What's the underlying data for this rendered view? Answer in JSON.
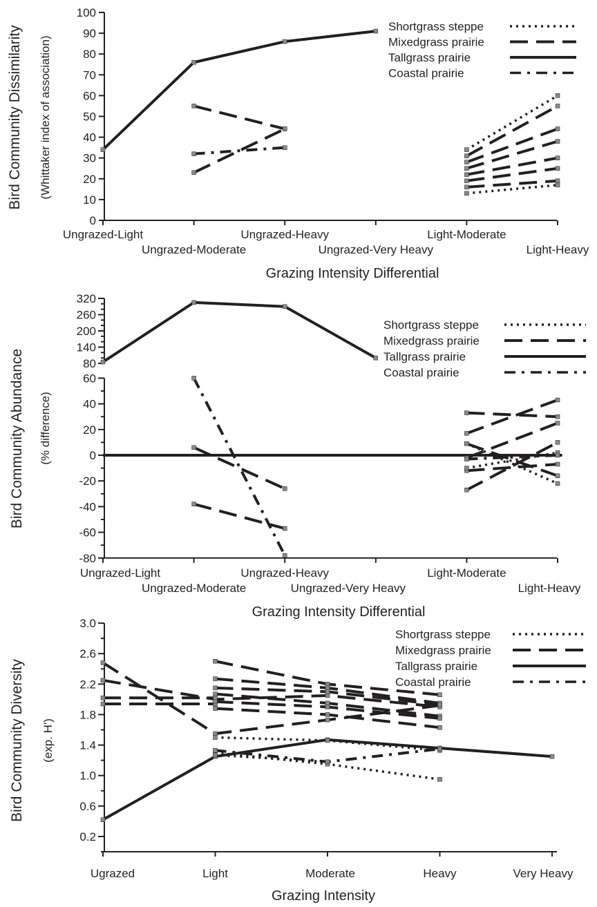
{
  "colors": {
    "ink": "#231f20",
    "background": "#ffffff",
    "markers": "#8a8a8a"
  },
  "legend_items": [
    "Shortgrass steppe",
    "Mixedgrass prairie",
    "Tallgrass prairie",
    "Coastal prairie"
  ],
  "chart_data": [
    {
      "type": "line",
      "ylabel": "Bird Community Dissimilarity",
      "ylabel_sub": "(Whittaker index of association)",
      "xlabel": "Grazing Intensity Differential",
      "categories": [
        "Ungrazed-Light",
        "Ungrazed-Moderate",
        "Ungrazed-Heavy",
        "Ungrazed-Very Heavy",
        "Light-Moderate",
        "Light-Heavy"
      ],
      "yticks": [
        0,
        10,
        20,
        30,
        40,
        50,
        60,
        70,
        80,
        90,
        100
      ],
      "ylim": [
        0,
        100
      ],
      "legend": [
        "Shortgrass steppe",
        "Mixedgrass prairie",
        "Tallgrass prairie",
        "Coastal prairie"
      ],
      "legend_position": "top-right",
      "grid": false,
      "series": [
        {
          "style": "solid",
          "points": [
            [
              0,
              34
            ],
            [
              1,
              76
            ],
            [
              2,
              86
            ],
            [
              3,
              91
            ]
          ]
        },
        {
          "style": "dashed",
          "points": [
            [
              1,
              55
            ],
            [
              2,
              44
            ]
          ]
        },
        {
          "style": "dashed",
          "points": [
            [
              1,
              23
            ],
            [
              2,
              44
            ]
          ]
        },
        {
          "style": "dashdot",
          "points": [
            [
              1,
              32
            ],
            [
              2,
              35
            ]
          ]
        },
        {
          "style": "dotted",
          "points": [
            [
              4,
              34
            ],
            [
              5,
              60
            ]
          ]
        },
        {
          "style": "dotted",
          "points": [
            [
              4,
              13
            ],
            [
              5,
              17
            ]
          ]
        },
        {
          "style": "dashed",
          "points": [
            [
              4,
              31
            ],
            [
              5,
              55
            ]
          ]
        },
        {
          "style": "dashed",
          "points": [
            [
              4,
              28
            ],
            [
              5,
              44
            ]
          ]
        },
        {
          "style": "dashed",
          "points": [
            [
              4,
              25
            ],
            [
              5,
              38
            ]
          ]
        },
        {
          "style": "dashed",
          "points": [
            [
              4,
              22
            ],
            [
              5,
              30
            ]
          ]
        },
        {
          "style": "dashed",
          "points": [
            [
              4,
              19
            ],
            [
              5,
              25
            ]
          ]
        },
        {
          "style": "dashed",
          "points": [
            [
              4,
              16
            ],
            [
              5,
              19
            ]
          ]
        }
      ]
    },
    {
      "type": "line",
      "ylabel": "Bird Community Abundance",
      "ylabel_sub": "(% difference)",
      "xlabel": "Grazing Intensity Differential",
      "categories": [
        "Ungrazed-Light",
        "Ungrazed-Moderate",
        "Ungrazed-Heavy",
        "Ungrazed-Very Heavy",
        "Light-Moderate",
        "Light-Heavy"
      ],
      "yticks_upper": [
        80,
        140,
        200,
        260,
        320
      ],
      "yticks_lower": [
        -80,
        -60,
        -40,
        -20,
        0,
        20,
        40,
        60
      ],
      "ylim_upper": [
        80,
        320
      ],
      "ylim_lower": [
        -80,
        60
      ],
      "legend": [
        "Shortgrass steppe",
        "Mixedgrass prairie",
        "Tallgrass prairie",
        "Coastal prairie"
      ],
      "legend_position": "top-right",
      "grid": false,
      "series_upper": [
        {
          "style": "solid",
          "points": [
            [
              0,
              85
            ],
            [
              1,
              305
            ],
            [
              2,
              290
            ],
            [
              3,
              100
            ]
          ]
        }
      ],
      "series": [
        {
          "style": "solid",
          "points": [
            [
              0,
              0
            ],
            [
              5.05,
              0
            ]
          ]
        },
        {
          "style": "dashdot",
          "points": [
            [
              1,
              60
            ],
            [
              2,
              -78
            ]
          ]
        },
        {
          "style": "dashed",
          "points": [
            [
              1,
              6
            ],
            [
              2,
              -26
            ]
          ]
        },
        {
          "style": "dashed",
          "points": [
            [
              1,
              -38
            ],
            [
              2,
              -57
            ]
          ]
        },
        {
          "style": "dashed",
          "points": [
            [
              4,
              33
            ],
            [
              5,
              30
            ]
          ]
        },
        {
          "style": "dashed",
          "points": [
            [
              4,
              17
            ],
            [
              5,
              43
            ]
          ]
        },
        {
          "style": "dashed",
          "points": [
            [
              4,
              9
            ],
            [
              5,
              -16
            ]
          ]
        },
        {
          "style": "dashed",
          "points": [
            [
              4,
              -2
            ],
            [
              5,
              25
            ]
          ]
        },
        {
          "style": "dashed",
          "points": [
            [
              4,
              -27
            ],
            [
              5,
              10
            ]
          ]
        },
        {
          "style": "dashed",
          "points": [
            [
              4,
              -12
            ],
            [
              5,
              -7
            ]
          ]
        },
        {
          "style": "dotted",
          "points": [
            [
              4,
              9
            ],
            [
              5,
              -22
            ]
          ]
        },
        {
          "style": "dotted",
          "points": [
            [
              4,
              -10
            ],
            [
              5,
              2
            ]
          ]
        },
        {
          "style": "dashdot",
          "points": [
            [
              4,
              -3
            ],
            [
              5,
              0
            ]
          ]
        }
      ]
    },
    {
      "type": "line",
      "ylabel": "Bird Community Diversity",
      "ylabel_sub": "(exp. H')",
      "xlabel": "Grazing Intensity",
      "categories": [
        "Ugrazed",
        "Light",
        "Moderate",
        "Heavy",
        "Very Heavy"
      ],
      "yticks": [
        0.2,
        0.6,
        1.0,
        1.4,
        1.8,
        2.2,
        2.6,
        3.0
      ],
      "ytick_labels": [
        "0.2",
        "0.6",
        "1.0",
        "1.4",
        "1.8",
        "2.2",
        "2.6",
        "3.0"
      ],
      "ylim": [
        0.0,
        3.0
      ],
      "legend": [
        "Shortgrass steppe",
        "Mixedgrass prairie",
        "Tallgrass prairie",
        "Coastal prairie"
      ],
      "legend_position": "top-right",
      "grid": false,
      "series": [
        {
          "style": "solid",
          "points": [
            [
              0,
              0.42
            ],
            [
              1,
              1.25
            ],
            [
              2,
              1.47
            ],
            [
              3,
              1.36
            ],
            [
              4,
              1.25
            ]
          ]
        },
        {
          "style": "dashed",
          "points": [
            [
              0,
              2.48
            ],
            [
              1,
              1.55
            ],
            [
              2,
              1.73
            ],
            [
              3,
              1.92
            ]
          ]
        },
        {
          "style": "dashed",
          "points": [
            [
              0,
              2.25
            ],
            [
              1,
              2.0
            ],
            [
              2,
              2.05
            ],
            [
              3,
              1.9
            ]
          ]
        },
        {
          "style": "dashed",
          "points": [
            [
              0,
              2.02
            ],
            [
              1,
              2.02
            ]
          ]
        },
        {
          "style": "dashed",
          "points": [
            [
              0,
              1.94
            ],
            [
              1,
              1.94
            ]
          ]
        },
        {
          "style": "dashed",
          "points": [
            [
              1,
              2.5
            ],
            [
              2,
              2.2
            ],
            [
              3,
              2.06
            ]
          ]
        },
        {
          "style": "dashed",
          "points": [
            [
              1,
              2.27
            ],
            [
              2,
              2.15
            ],
            [
              3,
              1.95
            ]
          ]
        },
        {
          "style": "dashed",
          "points": [
            [
              1,
              2.15
            ],
            [
              2,
              2.1
            ],
            [
              3,
              1.93
            ]
          ]
        },
        {
          "style": "dashed",
          "points": [
            [
              1,
              2.07
            ],
            [
              2,
              1.95
            ],
            [
              3,
              1.78
            ]
          ]
        },
        {
          "style": "dashed",
          "points": [
            [
              1,
              1.97
            ],
            [
              2,
              1.9
            ],
            [
              3,
              1.75
            ]
          ]
        },
        {
          "style": "dashed",
          "points": [
            [
              1,
              1.88
            ],
            [
              2,
              1.8
            ],
            [
              3,
              1.63
            ]
          ]
        },
        {
          "style": "dotted",
          "points": [
            [
              1,
              1.5
            ],
            [
              2,
              1.46
            ],
            [
              3,
              1.33
            ]
          ]
        },
        {
          "style": "dotted",
          "points": [
            [
              1,
              1.3
            ],
            [
              2,
              1.15
            ],
            [
              3,
              0.95
            ]
          ]
        },
        {
          "style": "dotted",
          "points": [
            [
              1,
              1.27
            ],
            [
              2,
              1.18
            ]
          ]
        },
        {
          "style": "dashdot",
          "points": [
            [
              1,
              1.33
            ],
            [
              2,
              1.18
            ],
            [
              3,
              1.35
            ]
          ]
        }
      ]
    }
  ]
}
